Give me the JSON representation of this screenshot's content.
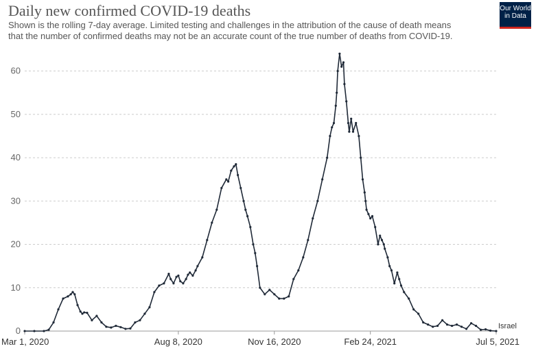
{
  "header": {
    "title": "Daily new confirmed COVID-19 deaths",
    "subtitle_line1": "Shown is the rolling 7-day average. Limited testing and challenges in the attribution of the cause of death means",
    "subtitle_line2": "that the number of confirmed deaths may not be an accurate count of the true number of deaths from COVID-19."
  },
  "logo": {
    "line1": "Our World",
    "line2": "in Data"
  },
  "colors": {
    "line": "#1f2937",
    "grid": "#cccccc",
    "logo_bg": "#002147",
    "logo_bar": "#ce261e"
  },
  "chart_data": {
    "type": "line",
    "title": "Daily new confirmed COVID-19 deaths",
    "xlabel": "",
    "ylabel": "",
    "ylim": [
      0,
      65
    ],
    "yticks": [
      0,
      10,
      20,
      30,
      40,
      50,
      60
    ],
    "xrange_days": [
      0,
      491
    ],
    "xtick_labels": [
      {
        "label": "Mar 1, 2020",
        "day": 0
      },
      {
        "label": "Aug 8, 2020",
        "day": 160
      },
      {
        "label": "Nov 16, 2020",
        "day": 260
      },
      {
        "label": "Feb 24, 2021",
        "day": 360
      },
      {
        "label": "Jul 5, 2021",
        "day": 491
      }
    ],
    "grid": true,
    "series": [
      {
        "name": "Israel",
        "x": [
          0,
          10,
          20,
          25,
          30,
          35,
          40,
          45,
          48,
          50,
          52,
          55,
          58,
          60,
          62,
          65,
          70,
          75,
          80,
          85,
          90,
          95,
          100,
          105,
          110,
          115,
          120,
          125,
          130,
          135,
          140,
          145,
          150,
          152,
          155,
          158,
          160,
          162,
          165,
          168,
          170,
          172,
          175,
          178,
          180,
          185,
          190,
          195,
          200,
          205,
          210,
          212,
          215,
          218,
          220,
          222,
          225,
          228,
          230,
          232,
          235,
          238,
          240,
          242,
          245,
          250,
          255,
          260,
          265,
          270,
          275,
          280,
          285,
          290,
          295,
          300,
          305,
          310,
          315,
          318,
          320,
          322,
          324,
          325,
          326,
          328,
          330,
          332,
          333,
          335,
          337,
          338,
          340,
          342,
          345,
          348,
          350,
          352,
          354,
          355,
          356,
          358,
          360,
          362,
          365,
          368,
          370,
          372,
          374,
          375,
          378,
          380,
          382,
          385,
          388,
          390,
          392,
          395,
          400,
          405,
          410,
          415,
          420,
          425,
          430,
          435,
          440,
          445,
          450,
          455,
          460,
          465,
          470,
          475,
          480,
          485,
          491
        ],
        "values": [
          0,
          0,
          0,
          0.3,
          2,
          5,
          7.5,
          8,
          8.5,
          9,
          8.5,
          6,
          4.5,
          4,
          4.3,
          4.2,
          2.5,
          3.5,
          2,
          1,
          0.8,
          1.2,
          0.9,
          0.5,
          0.6,
          2,
          2.5,
          4,
          5.5,
          9,
          10.5,
          11,
          13.2,
          12,
          11,
          12.5,
          12.8,
          11.5,
          11,
          12,
          13,
          13.5,
          12.8,
          14,
          15,
          17,
          21,
          25,
          28,
          33,
          35,
          34.5,
          37,
          38,
          38.5,
          36,
          33,
          30,
          28,
          26.5,
          24,
          20,
          18,
          15,
          10,
          8.5,
          9.5,
          8.5,
          7.5,
          7.5,
          8,
          12,
          14,
          17,
          21,
          26,
          30,
          35,
          40,
          45,
          47,
          48,
          52,
          55,
          60,
          64,
          61,
          62,
          57,
          53,
          48,
          46,
          49,
          46,
          48,
          45,
          40,
          35,
          32,
          30,
          28,
          27,
          26,
          26.5,
          24,
          20,
          22,
          21,
          20,
          19,
          17,
          15,
          14,
          11,
          13.5,
          12,
          10.5,
          9,
          7.5,
          5,
          4,
          2,
          1.5,
          1,
          1.2,
          2.5,
          1.5,
          1.2,
          1.5,
          1.0,
          0.5,
          1.8,
          1.2,
          0.3,
          0.4,
          0.1,
          0
        ]
      }
    ]
  }
}
